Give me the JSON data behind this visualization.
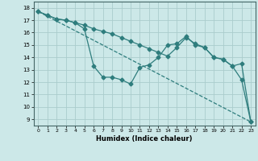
{
  "xlabel": "Humidex (Indice chaleur)",
  "bg_color": "#cce8e8",
  "line_color": "#2e7d7d",
  "grid_color": "#aacccc",
  "xlim": [
    -0.5,
    23.5
  ],
  "ylim": [
    8.5,
    18.5
  ],
  "xticks": [
    0,
    1,
    2,
    3,
    4,
    5,
    6,
    7,
    8,
    9,
    10,
    11,
    12,
    13,
    14,
    15,
    16,
    17,
    18,
    19,
    20,
    21,
    22,
    23
  ],
  "yticks": [
    9,
    10,
    11,
    12,
    13,
    14,
    15,
    16,
    17,
    18
  ],
  "line1_x": [
    0,
    1,
    2,
    3,
    4,
    5,
    6,
    7,
    8,
    9,
    10,
    11,
    12,
    13,
    14,
    15,
    16,
    17,
    18,
    19,
    20,
    21,
    22,
    23
  ],
  "line1_y": [
    17.7,
    17.4,
    17.1,
    17.0,
    16.8,
    16.6,
    16.3,
    16.1,
    15.9,
    15.6,
    15.3,
    15.0,
    14.7,
    14.4,
    14.1,
    14.8,
    15.6,
    15.1,
    14.8,
    14.0,
    13.85,
    13.3,
    13.5,
    8.8
  ],
  "line2_x": [
    0,
    1,
    2,
    3,
    4,
    5,
    6,
    7,
    8,
    9,
    10,
    11,
    12,
    13,
    14,
    15,
    16,
    17,
    18,
    19,
    20,
    21,
    22,
    23
  ],
  "line2_y": [
    17.7,
    17.4,
    17.1,
    17.0,
    16.8,
    16.3,
    13.3,
    12.4,
    12.4,
    12.2,
    11.85,
    13.2,
    13.4,
    14.0,
    15.0,
    15.1,
    15.7,
    15.0,
    14.8,
    14.0,
    13.85,
    13.3,
    12.2,
    8.8
  ],
  "line3_x": [
    0,
    23
  ],
  "line3_y": [
    17.7,
    8.8
  ]
}
